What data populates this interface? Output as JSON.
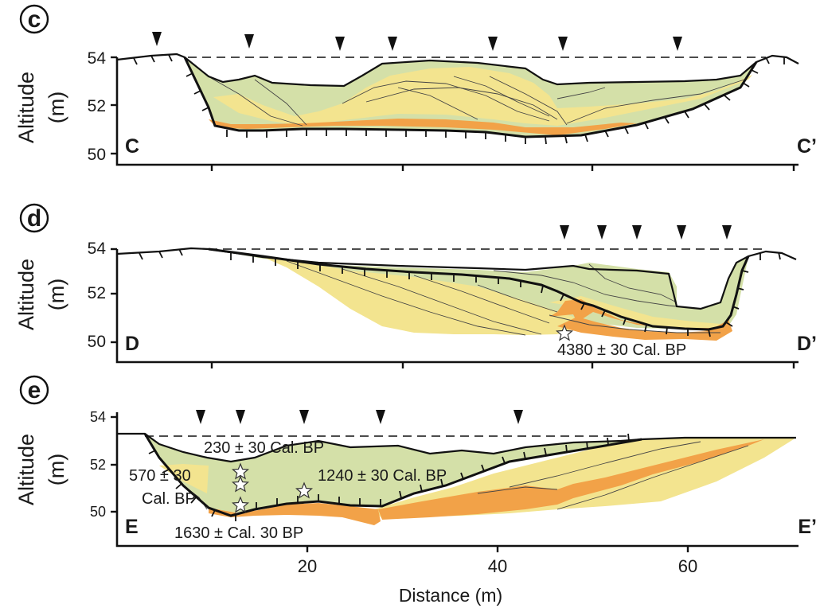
{
  "panels": [
    {
      "letter": "c",
      "y_label": "Altitude",
      "y_unit": "(m)",
      "y_ticks": [
        "54",
        "52",
        "50"
      ],
      "left_label": "C",
      "right_label": "C’",
      "dates": []
    },
    {
      "letter": "d",
      "y_label": "Altitude",
      "y_unit": "(m)",
      "y_ticks": [
        "54",
        "52",
        "50"
      ],
      "left_label": "D",
      "right_label": "D’",
      "dates": [
        "4380 ± 30 Cal. BP"
      ]
    },
    {
      "letter": "e",
      "y_label": "Altitude",
      "y_unit": "(m)",
      "y_ticks": [
        "54",
        "52",
        "50"
      ],
      "left_label": "E",
      "right_label": "E’",
      "dates": [
        "230 ± 30 Cal. BP",
        "570 ± 30",
        "Cal. BP",
        "1240 ± 30 Cal. BP",
        "1630 ± Cal. 30 BP"
      ]
    }
  ],
  "x_axis": {
    "label": "Distance (m)",
    "ticks": [
      "20",
      "40",
      "60"
    ]
  },
  "colors": {
    "green": "#d4e0a8",
    "yellow": "#f3e48f",
    "orange": "#f2a248",
    "outline": "#111111"
  }
}
